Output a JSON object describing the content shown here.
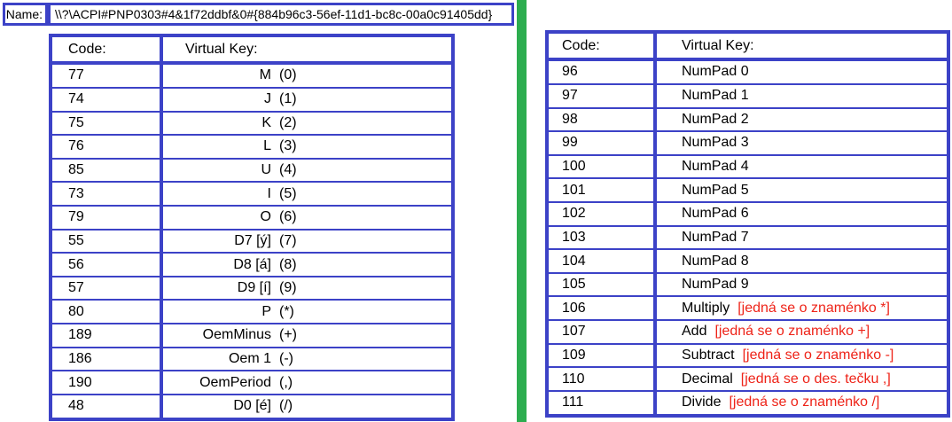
{
  "name_field": {
    "label": "Name:",
    "value": "\\\\?\\ACPI#PNP0303#4&1f72ddbf&0#{884b96c3-56ef-11d1-bc8c-00a0c91405dd}"
  },
  "left_table": {
    "headers": {
      "code": "Code:",
      "virtual_key": "Virtual Key:"
    },
    "rows": [
      {
        "code": "77",
        "key": "M",
        "symbol": "(0)"
      },
      {
        "code": "74",
        "key": "J",
        "symbol": "(1)"
      },
      {
        "code": "75",
        "key": "K",
        "symbol": "(2)"
      },
      {
        "code": "76",
        "key": "L",
        "symbol": "(3)"
      },
      {
        "code": "85",
        "key": "U",
        "symbol": "(4)"
      },
      {
        "code": "73",
        "key": "I",
        "symbol": "(5)"
      },
      {
        "code": "79",
        "key": "O",
        "symbol": "(6)"
      },
      {
        "code": "55",
        "key": "D7 [ý]",
        "symbol": "(7)"
      },
      {
        "code": "56",
        "key": "D8 [á]",
        "symbol": "(8)"
      },
      {
        "code": "57",
        "key": "D9 [í]",
        "symbol": "(9)"
      },
      {
        "code": "80",
        "key": "P",
        "symbol": "(*)"
      },
      {
        "code": "189",
        "key": "OemMinus",
        "symbol": "(+)"
      },
      {
        "code": "186",
        "key": "Oem 1",
        "symbol": "(-)"
      },
      {
        "code": "190",
        "key": "OemPeriod",
        "symbol": "(,)"
      },
      {
        "code": "48",
        "key": "D0 [é]",
        "symbol": "(/)"
      }
    ]
  },
  "right_table": {
    "headers": {
      "code": "Code:",
      "virtual_key": "Virtual Key:"
    },
    "rows": [
      {
        "code": "96",
        "key": "NumPad 0",
        "note": ""
      },
      {
        "code": "97",
        "key": "NumPad 1",
        "note": ""
      },
      {
        "code": "98",
        "key": "NumPad 2",
        "note": ""
      },
      {
        "code": "99",
        "key": "NumPad 3",
        "note": ""
      },
      {
        "code": "100",
        "key": "NumPad 4",
        "note": ""
      },
      {
        "code": "101",
        "key": "NumPad 5",
        "note": ""
      },
      {
        "code": "102",
        "key": "NumPad 6",
        "note": ""
      },
      {
        "code": "103",
        "key": "NumPad 7",
        "note": ""
      },
      {
        "code": "104",
        "key": "NumPad 8",
        "note": ""
      },
      {
        "code": "105",
        "key": "NumPad 9",
        "note": ""
      },
      {
        "code": "106",
        "key": "Multiply",
        "note": "[jedná se o znaménko *]"
      },
      {
        "code": "107",
        "key": "Add",
        "note": "[jedná se o znaménko +]"
      },
      {
        "code": "109",
        "key": "Subtract",
        "note": "[jedná se o znaménko -]"
      },
      {
        "code": "110",
        "key": "Decimal",
        "note": "[jedná se o des. tečku ,]"
      },
      {
        "code": "111",
        "key": "Divide",
        "note": "[jedná se o znaménko /]"
      }
    ]
  },
  "colors": {
    "border_blue": "#3c42c7",
    "divider_green": "#2dad4f",
    "note_red": "#ee2318"
  }
}
